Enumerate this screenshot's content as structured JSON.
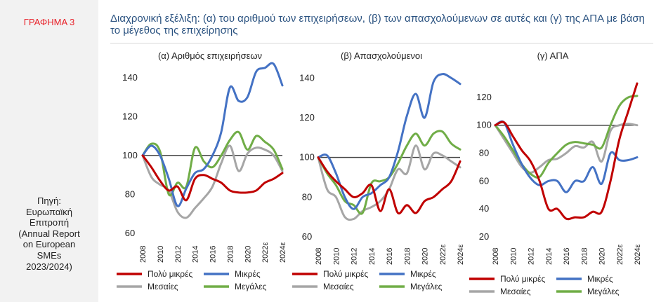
{
  "figure_label": "ΓΡΑΦΗΜΑ 3",
  "title": "Διαχρονική εξέλιξη: (α) του αριθμού των επιχειρήσεων, (β) των απασχολούμενων σε αυτές και (γ) της ΑΠΑ με βάση το μέγεθος της επιχείρησης",
  "source_lines": [
    "Πηγή:",
    "Ευρωπαϊκή",
    "Επιτροπή",
    "(Annual Report",
    "on European",
    "SMEs",
    "2023/2024)"
  ],
  "colors": {
    "very_small": "#c00000",
    "small": "#4472c4",
    "medium": "#a6a6a6",
    "large": "#70ad47",
    "baseline": "#404040",
    "label_red": "#e8222a",
    "title_blue": "#2a5280"
  },
  "chart_data": [
    {
      "type": "line",
      "title": "(α) Αριθμός επιχειρήσεων",
      "x": [
        2008,
        2009,
        2010,
        2011,
        2012,
        2013,
        2014,
        2015,
        2016,
        2017,
        2018,
        2019,
        2020,
        2021,
        "2022ε",
        2023,
        "2024ε"
      ],
      "x_tick_labels": [
        "2008",
        "2010",
        "2012",
        "2014",
        "2016",
        "2018",
        "2020",
        "2022ε",
        "2024ε"
      ],
      "ylim": [
        60,
        150
      ],
      "y_ticks": [
        60,
        80,
        100,
        120,
        140
      ],
      "baseline": 100,
      "series": [
        {
          "name": "Πολύ μικρές",
          "values": [
            100,
            94,
            87,
            82,
            84,
            77,
            88,
            90,
            88,
            86,
            82,
            81,
            81,
            82,
            86,
            88,
            91
          ]
        },
        {
          "name": "Μικρές",
          "values": [
            100,
            105,
            100,
            88,
            74,
            83,
            91,
            93,
            100,
            112,
            135,
            128,
            130,
            143,
            145,
            147,
            136
          ]
        },
        {
          "name": "Μεσαίες",
          "values": [
            100,
            89,
            85,
            82,
            71,
            68,
            73,
            78,
            84,
            96,
            105,
            92,
            101,
            104,
            103,
            100,
            92
          ]
        },
        {
          "name": "Μεγάλες",
          "values": [
            100,
            106,
            102,
            80,
            86,
            84,
            104,
            97,
            94,
            100,
            108,
            112,
            103,
            110,
            107,
            103,
            93
          ]
        }
      ]
    },
    {
      "type": "line",
      "title": "(β) Απασχολούμενοι",
      "x": [
        2008,
        2009,
        2010,
        2011,
        2012,
        2013,
        2014,
        2015,
        2016,
        2017,
        2018,
        2019,
        2020,
        2021,
        "2022ε",
        2023,
        "2024ε"
      ],
      "x_tick_labels": [
        "2008",
        "2010",
        "2012",
        "2014",
        "2016",
        "2018",
        "2020",
        "2022ε",
        "2024ε"
      ],
      "ylim": [
        60,
        150
      ],
      "y_ticks": [
        60,
        80,
        100,
        120,
        140
      ],
      "baseline": 100,
      "series": [
        {
          "name": "Πολύ μικρές",
          "values": [
            100,
            93,
            88,
            84,
            80,
            82,
            86,
            73,
            84,
            72,
            76,
            72,
            78,
            80,
            84,
            88,
            98
          ]
        },
        {
          "name": "Μικρές",
          "values": [
            100,
            101,
            92,
            80,
            74,
            80,
            82,
            86,
            90,
            103,
            121,
            132,
            120,
            138,
            142,
            140,
            137
          ]
        },
        {
          "name": "Μεσαίες",
          "values": [
            100,
            84,
            80,
            70,
            69,
            73,
            75,
            78,
            84,
            94,
            92,
            106,
            94,
            102,
            101,
            98,
            95
          ]
        },
        {
          "name": "Μεγάλες",
          "values": [
            100,
            92,
            86,
            78,
            76,
            72,
            87,
            88,
            90,
            97,
            106,
            112,
            106,
            112,
            113,
            107,
            104
          ]
        }
      ]
    },
    {
      "type": "line",
      "title": "(γ) ΑΠΑ",
      "x": [
        2008,
        2009,
        2010,
        2011,
        2012,
        2013,
        2014,
        2015,
        2016,
        2017,
        2018,
        2019,
        2020,
        2021,
        "2022ε",
        2023,
        "2024ε"
      ],
      "x_tick_labels": [
        "2008",
        "2010",
        "2012",
        "2014",
        "2016",
        "2018",
        "2020",
        "2022ε",
        "2024ε"
      ],
      "ylim": [
        20,
        130
      ],
      "y_ticks": [
        20,
        40,
        60,
        80,
        100,
        120
      ],
      "baseline": 100,
      "series": [
        {
          "name": "Πολύ μικρές",
          "values": [
            100,
            102,
            92,
            82,
            74,
            60,
            40,
            40,
            33,
            34,
            34,
            38,
            38,
            60,
            90,
            110,
            130
          ]
        },
        {
          "name": "Μικρές",
          "values": [
            100,
            102,
            86,
            72,
            62,
            57,
            60,
            60,
            52,
            60,
            60,
            70,
            58,
            80,
            75,
            75,
            77
          ]
        },
        {
          "name": "Μεσαίες",
          "values": [
            100,
            90,
            80,
            70,
            66,
            70,
            75,
            76,
            80,
            85,
            84,
            88,
            74,
            96,
            100,
            101,
            100
          ]
        },
        {
          "name": "Μεγάλες",
          "values": [
            100,
            92,
            82,
            72,
            65,
            63,
            73,
            80,
            86,
            88,
            87,
            86,
            84,
            100,
            114,
            120,
            121
          ]
        }
      ]
    }
  ]
}
